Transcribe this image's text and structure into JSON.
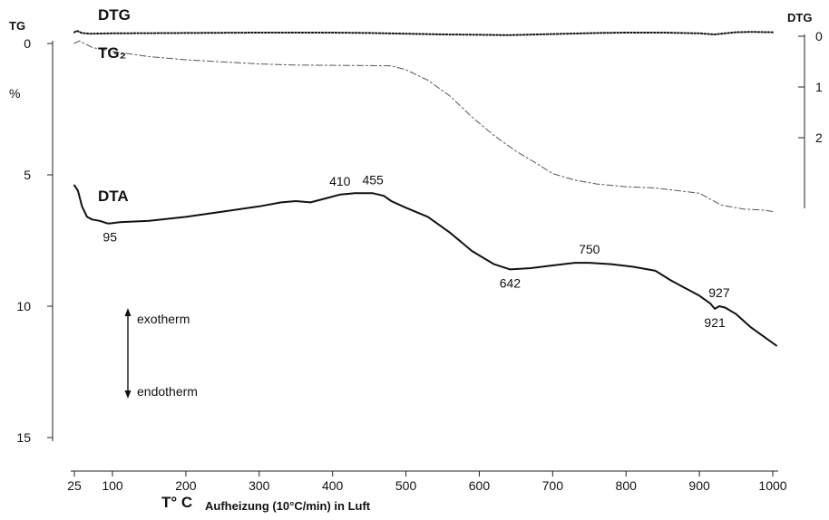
{
  "chart_data": {
    "type": "line",
    "x_axis": {
      "label_main": "T° C",
      "label_sub": "Aufheizung (10°C/min) in Luft",
      "ticks": [
        25,
        100,
        200,
        300,
        400,
        500,
        600,
        700,
        800,
        900,
        1000
      ],
      "range": [
        25,
        1000
      ]
    },
    "y_axis_left": {
      "title": "TG",
      "unit": "%",
      "ticks": [
        0,
        5,
        10,
        15
      ],
      "range": [
        0,
        15
      ],
      "inverted": true
    },
    "y_axis_right": {
      "title": "DTG",
      "ticks": [
        0,
        1,
        2
      ]
    },
    "series": [
      {
        "name": "DTA",
        "style": "solid",
        "color": "#111111",
        "points": [
          [
            25,
            5.4
          ],
          [
            32,
            5.6
          ],
          [
            40,
            6.2
          ],
          [
            50,
            6.6
          ],
          [
            60,
            6.7
          ],
          [
            75,
            6.75
          ],
          [
            90,
            6.85
          ],
          [
            95,
            6.85
          ],
          [
            110,
            6.8
          ],
          [
            150,
            6.75
          ],
          [
            200,
            6.6
          ],
          [
            250,
            6.4
          ],
          [
            300,
            6.2
          ],
          [
            330,
            6.05
          ],
          [
            350,
            6.0
          ],
          [
            370,
            6.05
          ],
          [
            390,
            5.9
          ],
          [
            410,
            5.75
          ],
          [
            430,
            5.7
          ],
          [
            455,
            5.7
          ],
          [
            470,
            5.8
          ],
          [
            480,
            6.0
          ],
          [
            500,
            6.25
          ],
          [
            530,
            6.6
          ],
          [
            560,
            7.2
          ],
          [
            590,
            7.9
          ],
          [
            620,
            8.4
          ],
          [
            642,
            8.6
          ],
          [
            670,
            8.55
          ],
          [
            700,
            8.45
          ],
          [
            730,
            8.35
          ],
          [
            750,
            8.35
          ],
          [
            780,
            8.4
          ],
          [
            810,
            8.5
          ],
          [
            840,
            8.65
          ],
          [
            860,
            9.0
          ],
          [
            880,
            9.3
          ],
          [
            900,
            9.6
          ],
          [
            915,
            9.9
          ],
          [
            921,
            10.1
          ],
          [
            927,
            10.0
          ],
          [
            935,
            10.05
          ],
          [
            950,
            10.3
          ],
          [
            970,
            10.8
          ],
          [
            990,
            11.2
          ],
          [
            1005,
            11.5
          ]
        ]
      },
      {
        "name": "TG₂",
        "style": "dash",
        "color": "#555555",
        "points": [
          [
            25,
            0.0
          ],
          [
            35,
            -0.1
          ],
          [
            60,
            0.15
          ],
          [
            100,
            0.3
          ],
          [
            150,
            0.5
          ],
          [
            200,
            0.62
          ],
          [
            250,
            0.7
          ],
          [
            300,
            0.78
          ],
          [
            350,
            0.82
          ],
          [
            400,
            0.83
          ],
          [
            450,
            0.84
          ],
          [
            480,
            0.85
          ],
          [
            500,
            1.0
          ],
          [
            530,
            1.4
          ],
          [
            560,
            2.0
          ],
          [
            590,
            2.8
          ],
          [
            620,
            3.5
          ],
          [
            650,
            4.1
          ],
          [
            680,
            4.6
          ],
          [
            700,
            4.95
          ],
          [
            730,
            5.2
          ],
          [
            760,
            5.35
          ],
          [
            800,
            5.45
          ],
          [
            840,
            5.5
          ],
          [
            870,
            5.6
          ],
          [
            900,
            5.7
          ],
          [
            930,
            6.15
          ],
          [
            960,
            6.3
          ],
          [
            990,
            6.35
          ],
          [
            1000,
            6.4
          ]
        ]
      },
      {
        "name": "DTG",
        "style": "dot",
        "color": "#111111",
        "points": [
          [
            25,
            -0.3
          ],
          [
            30,
            -0.5
          ],
          [
            40,
            -0.2
          ],
          [
            55,
            -0.1
          ],
          [
            100,
            -0.15
          ],
          [
            200,
            -0.2
          ],
          [
            300,
            -0.25
          ],
          [
            400,
            -0.25
          ],
          [
            450,
            -0.2
          ],
          [
            500,
            -0.1
          ],
          [
            550,
            0.0
          ],
          [
            600,
            0.05
          ],
          [
            640,
            0.1
          ],
          [
            680,
            0.0
          ],
          [
            720,
            -0.1
          ],
          [
            760,
            -0.2
          ],
          [
            800,
            -0.25
          ],
          [
            850,
            -0.25
          ],
          [
            900,
            -0.15
          ],
          [
            920,
            0.0
          ],
          [
            935,
            -0.15
          ],
          [
            950,
            -0.3
          ],
          [
            970,
            -0.35
          ],
          [
            1000,
            -0.3
          ]
        ]
      }
    ],
    "annotations": [
      {
        "text": "95",
        "x": 95,
        "y": 6.85,
        "placement": "below"
      },
      {
        "text": "410",
        "x": 410,
        "y": 5.75,
        "placement": "above"
      },
      {
        "text": "455",
        "x": 455,
        "y": 5.7,
        "placement": "above"
      },
      {
        "text": "642",
        "x": 642,
        "y": 8.6,
        "placement": "below"
      },
      {
        "text": "750",
        "x": 750,
        "y": 8.35,
        "placement": "above"
      },
      {
        "text": "921",
        "x": 921,
        "y": 10.1,
        "placement": "below"
      },
      {
        "text": "927",
        "x": 927,
        "y": 10.0,
        "placement": "above"
      }
    ],
    "legend_text": {
      "exotherm": "exotherm",
      "endotherm": "endotherm"
    }
  }
}
